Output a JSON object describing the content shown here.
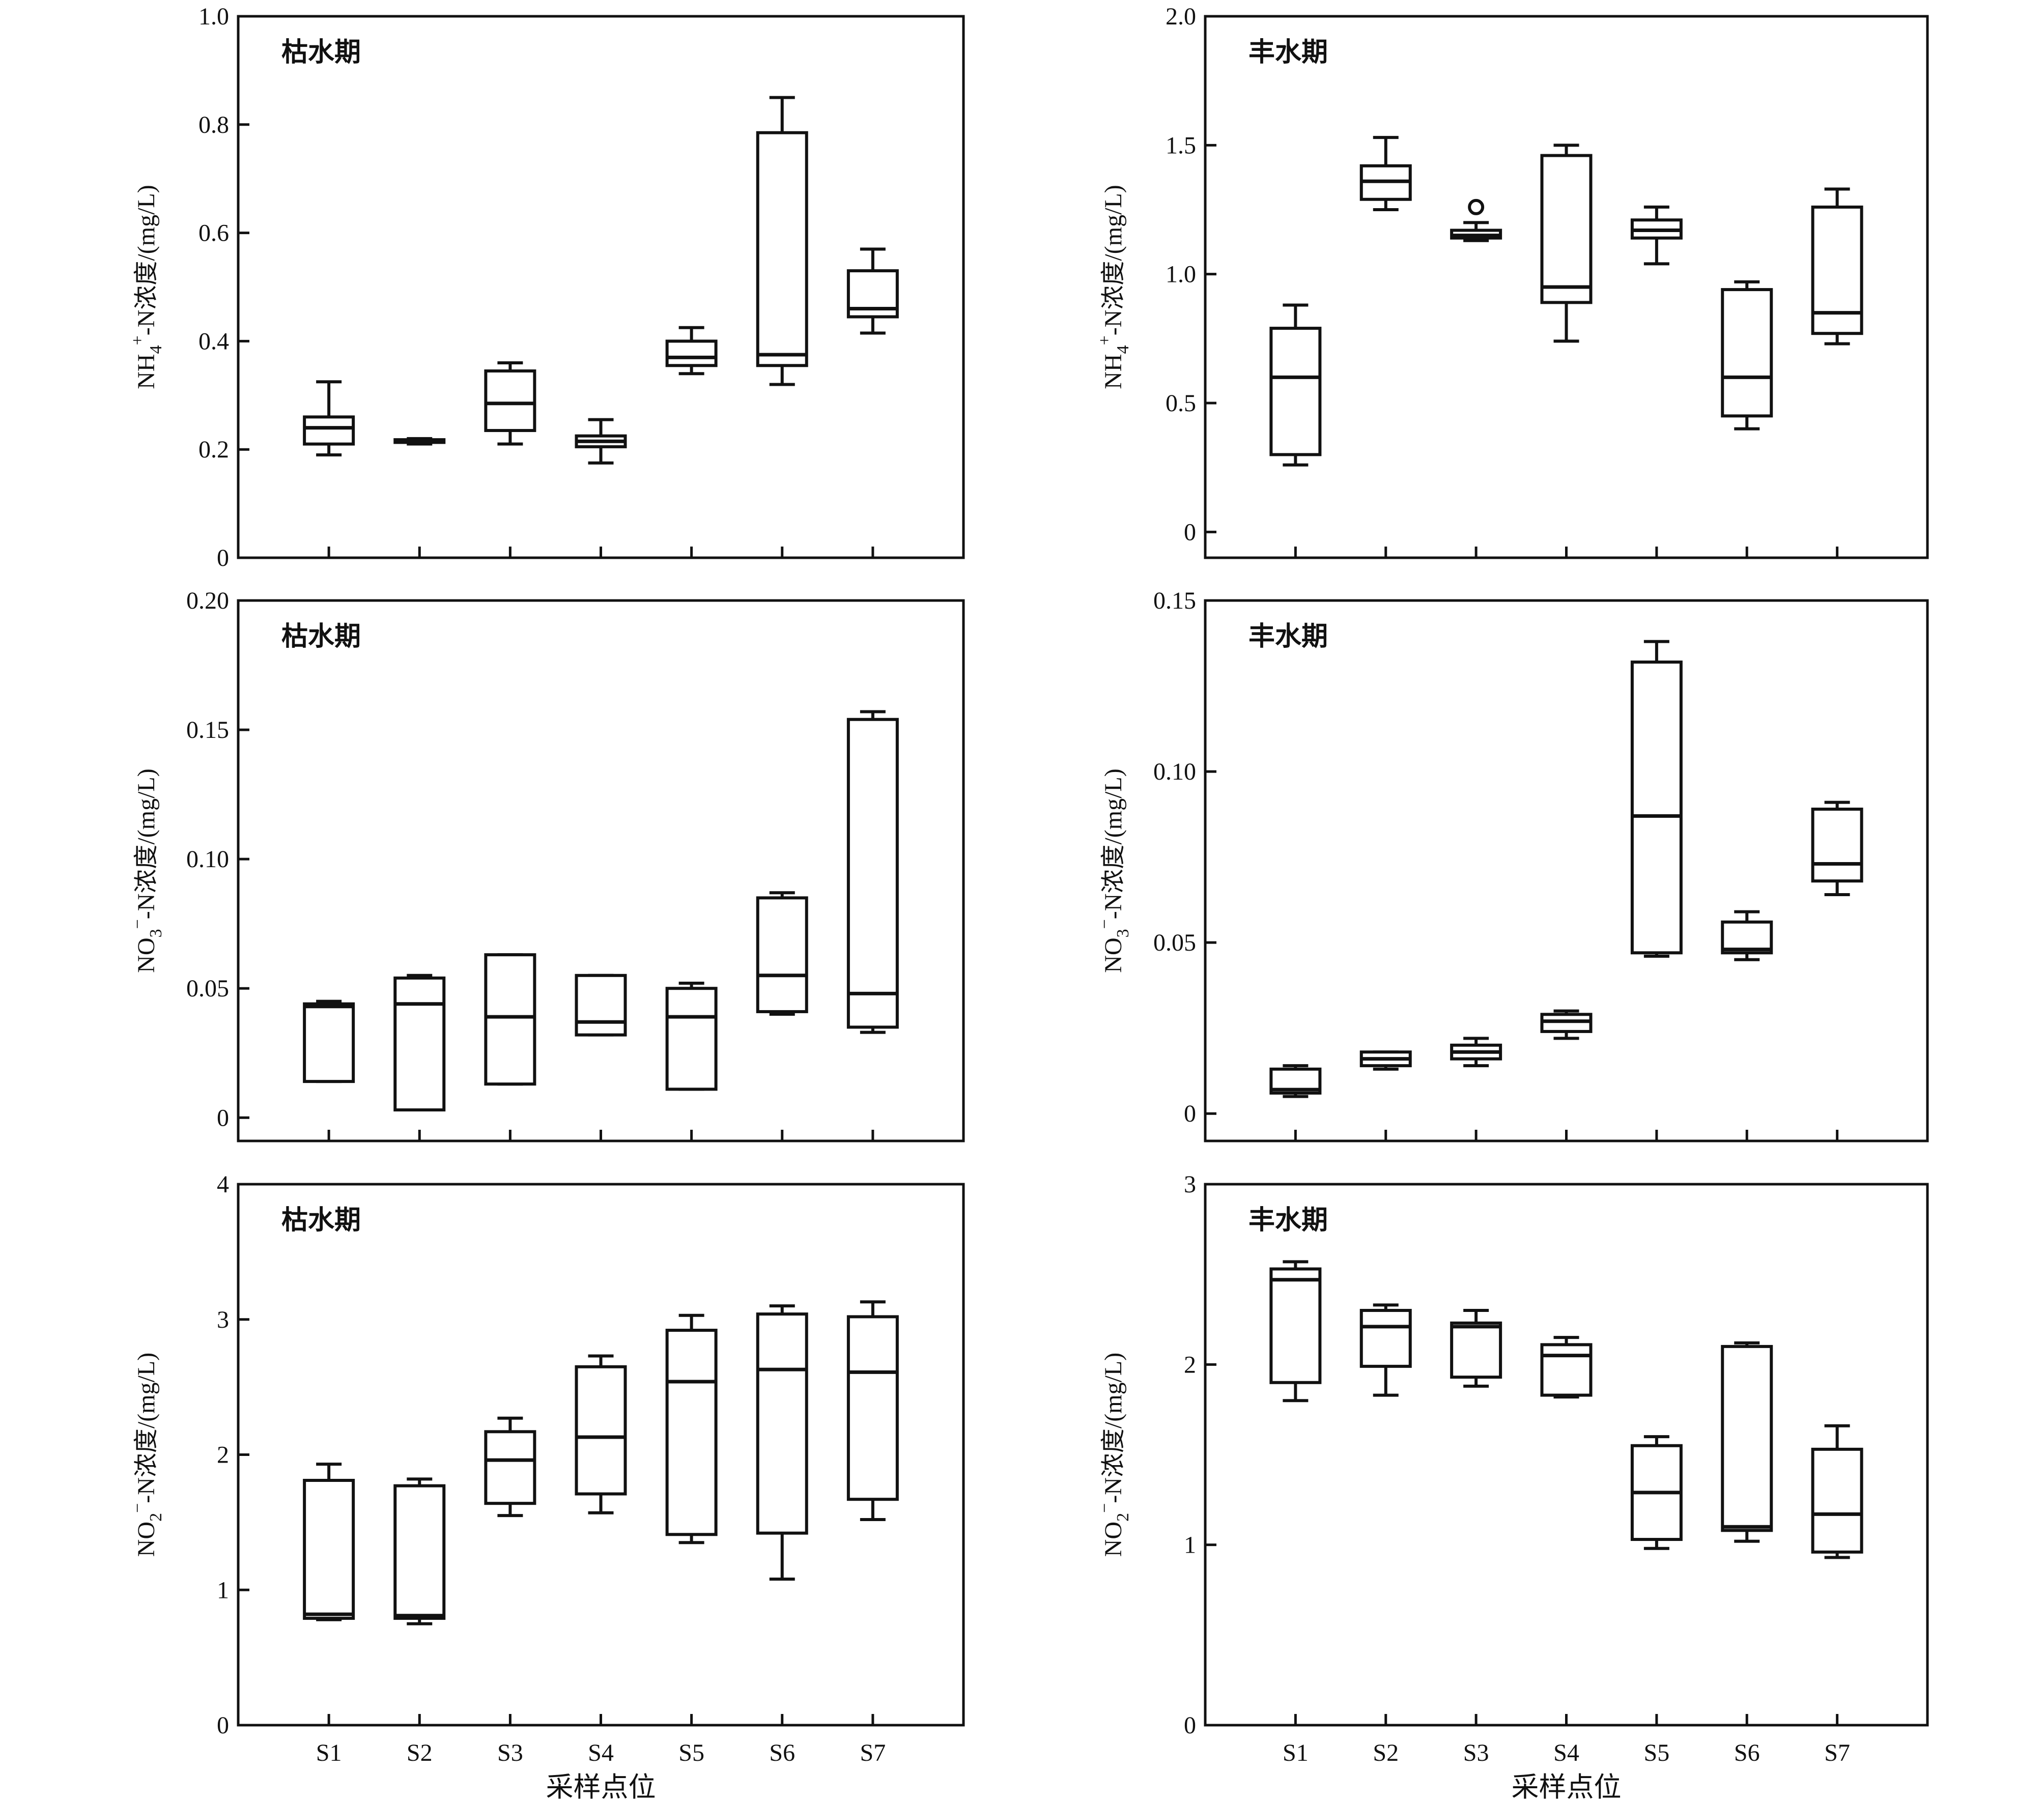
{
  "chart_data": [
    {
      "type": "box",
      "title": "枯水期",
      "ylabel_main": "NH",
      "ylabel_sub": "4",
      "ylabel_sup": "+",
      "ylabel_rest": "-N浓度/(mg/L)",
      "xlabel": "",
      "categories": [
        "S1",
        "S2",
        "S3",
        "S4",
        "S5",
        "S6",
        "S7"
      ],
      "ylim": [
        0,
        1.0
      ],
      "yticks": [
        "0",
        "0.2",
        "0.4",
        "0.6",
        "0.8",
        "1.0"
      ],
      "ytick_values": [
        0,
        0.2,
        0.4,
        0.6,
        0.8,
        1.0
      ],
      "show_xtick_labels": false,
      "boxes": [
        {
          "min": 0.19,
          "q1": 0.21,
          "median": 0.24,
          "q3": 0.26,
          "max": 0.325
        },
        {
          "min": 0.21,
          "q1": 0.213,
          "median": 0.215,
          "q3": 0.218,
          "max": 0.22
        },
        {
          "min": 0.21,
          "q1": 0.235,
          "median": 0.285,
          "q3": 0.345,
          "max": 0.36
        },
        {
          "min": 0.175,
          "q1": 0.205,
          "median": 0.215,
          "q3": 0.225,
          "max": 0.255
        },
        {
          "min": 0.34,
          "q1": 0.355,
          "median": 0.37,
          "q3": 0.4,
          "max": 0.425
        },
        {
          "min": 0.32,
          "q1": 0.355,
          "median": 0.375,
          "q3": 0.785,
          "max": 0.85
        },
        {
          "min": 0.415,
          "q1": 0.445,
          "median": 0.46,
          "q3": 0.53,
          "max": 0.57
        }
      ],
      "outliers": []
    },
    {
      "type": "box",
      "title": "丰水期",
      "ylabel_main": "NH",
      "ylabel_sub": "4",
      "ylabel_sup": "+",
      "ylabel_rest": "-N浓度/(mg/L)",
      "xlabel": "",
      "categories": [
        "S1",
        "S2",
        "S3",
        "S4",
        "S5",
        "S6",
        "S7"
      ],
      "ylim": [
        -0.1,
        2.0
      ],
      "yticks": [
        "0",
        "0.5",
        "1.0",
        "1.5",
        "2.0"
      ],
      "ytick_values": [
        0,
        0.5,
        1.0,
        1.5,
        2.0
      ],
      "show_xtick_labels": false,
      "boxes": [
        {
          "min": 0.26,
          "q1": 0.3,
          "median": 0.6,
          "q3": 0.79,
          "max": 0.88
        },
        {
          "min": 1.25,
          "q1": 1.29,
          "median": 1.36,
          "q3": 1.42,
          "max": 1.53
        },
        {
          "min": 1.13,
          "q1": 1.14,
          "median": 1.15,
          "q3": 1.17,
          "max": 1.2
        },
        {
          "min": 0.74,
          "q1": 0.89,
          "median": 0.95,
          "q3": 1.46,
          "max": 1.5
        },
        {
          "min": 1.04,
          "q1": 1.14,
          "median": 1.17,
          "q3": 1.21,
          "max": 1.26
        },
        {
          "min": 0.4,
          "q1": 0.45,
          "median": 0.6,
          "q3": 0.94,
          "max": 0.97
        },
        {
          "min": 0.73,
          "q1": 0.77,
          "median": 0.85,
          "q3": 1.26,
          "max": 1.33
        }
      ],
      "outliers": [
        {
          "category": "S3",
          "value": 1.26
        }
      ]
    },
    {
      "type": "box",
      "title": "枯水期",
      "ylabel_main": "NO",
      "ylabel_sub": "3",
      "ylabel_sup": "−",
      "ylabel_rest": "-N浓度/(mg/L)",
      "xlabel": "",
      "categories": [
        "S1",
        "S2",
        "S3",
        "S4",
        "S5",
        "S6",
        "S7"
      ],
      "ylim": [
        -0.009,
        0.2
      ],
      "yticks": [
        "0",
        "0.05",
        "0.10",
        "0.15",
        "0.20"
      ],
      "ytick_values": [
        0,
        0.05,
        0.1,
        0.15,
        0.2
      ],
      "show_xtick_labels": false,
      "boxes": [
        {
          "min": 0.014,
          "q1": 0.014,
          "median": 0.043,
          "q3": 0.044,
          "max": 0.045
        },
        {
          "min": 0.003,
          "q1": 0.003,
          "median": 0.044,
          "q3": 0.054,
          "max": 0.055
        },
        {
          "min": 0.013,
          "q1": 0.013,
          "median": 0.039,
          "q3": 0.063,
          "max": 0.063
        },
        {
          "min": 0.032,
          "q1": 0.032,
          "median": 0.037,
          "q3": 0.055,
          "max": 0.055
        },
        {
          "min": 0.011,
          "q1": 0.011,
          "median": 0.039,
          "q3": 0.05,
          "max": 0.052
        },
        {
          "min": 0.04,
          "q1": 0.041,
          "median": 0.055,
          "q3": 0.085,
          "max": 0.087
        },
        {
          "min": 0.033,
          "q1": 0.035,
          "median": 0.048,
          "q3": 0.154,
          "max": 0.157
        }
      ],
      "outliers": []
    },
    {
      "type": "box",
      "title": "丰水期",
      "ylabel_main": "NO",
      "ylabel_sub": "3",
      "ylabel_sup": "−",
      "ylabel_rest": "-N浓度/(mg/L)",
      "xlabel": "",
      "categories": [
        "S1",
        "S2",
        "S3",
        "S4",
        "S5",
        "S6",
        "S7"
      ],
      "ylim": [
        -0.008,
        0.15
      ],
      "yticks": [
        "0",
        "0.05",
        "0.10",
        "0.15"
      ],
      "ytick_values": [
        0,
        0.05,
        0.1,
        0.15
      ],
      "show_xtick_labels": false,
      "boxes": [
        {
          "min": 0.005,
          "q1": 0.006,
          "median": 0.007,
          "q3": 0.013,
          "max": 0.014
        },
        {
          "min": 0.013,
          "q1": 0.014,
          "median": 0.016,
          "q3": 0.018,
          "max": 0.018
        },
        {
          "min": 0.014,
          "q1": 0.016,
          "median": 0.018,
          "q3": 0.02,
          "max": 0.022
        },
        {
          "min": 0.022,
          "q1": 0.024,
          "median": 0.027,
          "q3": 0.029,
          "max": 0.03
        },
        {
          "min": 0.046,
          "q1": 0.047,
          "median": 0.087,
          "q3": 0.132,
          "max": 0.138
        },
        {
          "min": 0.045,
          "q1": 0.047,
          "median": 0.048,
          "q3": 0.056,
          "max": 0.059
        },
        {
          "min": 0.064,
          "q1": 0.068,
          "median": 0.073,
          "q3": 0.089,
          "max": 0.091
        }
      ],
      "outliers": []
    },
    {
      "type": "box",
      "title": "枯水期",
      "ylabel_main": "NO",
      "ylabel_sub": "2",
      "ylabel_sup": "−",
      "ylabel_rest": "-N浓度/(mg/L)",
      "xlabel": "采样点位",
      "categories": [
        "S1",
        "S2",
        "S3",
        "S4",
        "S5",
        "S6",
        "S7"
      ],
      "ylim": [
        0,
        4
      ],
      "yticks": [
        "0",
        "1",
        "2",
        "3",
        "4"
      ],
      "ytick_values": [
        0,
        1,
        2,
        3,
        4
      ],
      "show_xtick_labels": true,
      "boxes": [
        {
          "min": 0.78,
          "q1": 0.79,
          "median": 0.82,
          "q3": 1.81,
          "max": 1.93
        },
        {
          "min": 0.75,
          "q1": 0.79,
          "median": 0.81,
          "q3": 1.77,
          "max": 1.82
        },
        {
          "min": 1.55,
          "q1": 1.64,
          "median": 1.96,
          "q3": 2.17,
          "max": 2.27
        },
        {
          "min": 1.57,
          "q1": 1.71,
          "median": 2.13,
          "q3": 2.65,
          "max": 2.73
        },
        {
          "min": 1.35,
          "q1": 1.41,
          "median": 2.54,
          "q3": 2.92,
          "max": 3.03
        },
        {
          "min": 1.08,
          "q1": 1.42,
          "median": 2.63,
          "q3": 3.04,
          "max": 3.1
        },
        {
          "min": 1.52,
          "q1": 1.67,
          "median": 2.61,
          "q3": 3.02,
          "max": 3.13
        }
      ],
      "outliers": []
    },
    {
      "type": "box",
      "title": "丰水期",
      "ylabel_main": "NO",
      "ylabel_sub": "2",
      "ylabel_sup": "−",
      "ylabel_rest": "-N浓度/(mg/L)",
      "xlabel": "采样点位",
      "categories": [
        "S1",
        "S2",
        "S3",
        "S4",
        "S5",
        "S6",
        "S7"
      ],
      "ylim": [
        0,
        3
      ],
      "yticks": [
        "0",
        "1",
        "2",
        "3"
      ],
      "ytick_values": [
        0,
        1,
        2,
        3
      ],
      "show_xtick_labels": true,
      "boxes": [
        {
          "min": 1.8,
          "q1": 1.9,
          "median": 2.47,
          "q3": 2.53,
          "max": 2.57
        },
        {
          "min": 1.83,
          "q1": 1.99,
          "median": 2.21,
          "q3": 2.3,
          "max": 2.33
        },
        {
          "min": 1.88,
          "q1": 1.93,
          "median": 2.21,
          "q3": 2.23,
          "max": 2.3
        },
        {
          "min": 1.82,
          "q1": 1.83,
          "median": 2.05,
          "q3": 2.11,
          "max": 2.15
        },
        {
          "min": 0.98,
          "q1": 1.03,
          "median": 1.29,
          "q3": 1.55,
          "max": 1.6
        },
        {
          "min": 1.02,
          "q1": 1.08,
          "median": 1.1,
          "q3": 2.1,
          "max": 2.12
        },
        {
          "min": 0.93,
          "q1": 0.96,
          "median": 1.17,
          "q3": 1.53,
          "max": 1.66
        }
      ],
      "outliers": []
    }
  ]
}
